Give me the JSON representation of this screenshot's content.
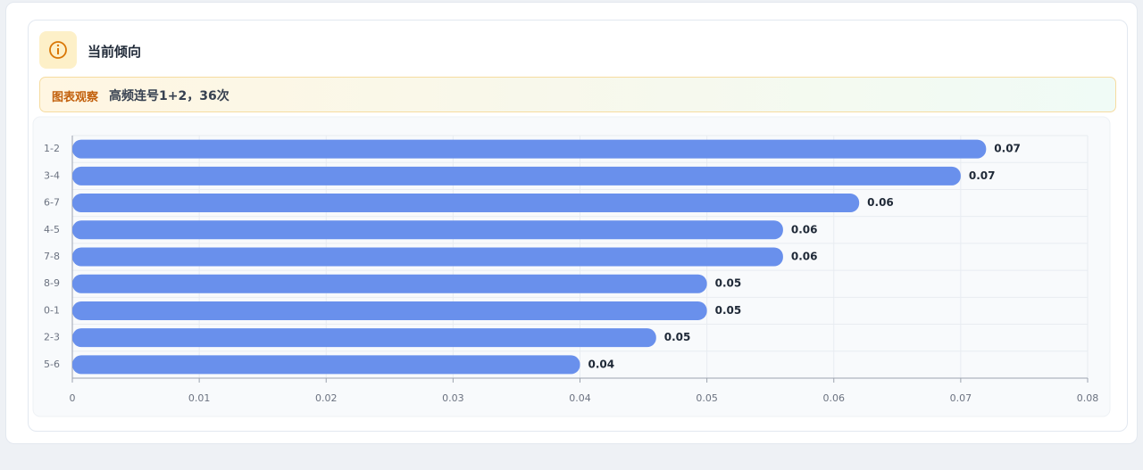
{
  "header": {
    "title": "当前倾向"
  },
  "notice": {
    "label": "图表观察",
    "text": "高频连号1+2，36次"
  },
  "chart_data": {
    "type": "bar",
    "orientation": "horizontal",
    "categories": [
      "1-2",
      "3-4",
      "6-7",
      "4-5",
      "7-8",
      "8-9",
      "0-1",
      "2-3",
      "5-6"
    ],
    "values": [
      0.072,
      0.07,
      0.062,
      0.056,
      0.056,
      0.05,
      0.05,
      0.046,
      0.04
    ],
    "value_labels": [
      "0.07",
      "0.07",
      "0.06",
      "0.06",
      "0.06",
      "0.05",
      "0.05",
      "0.05",
      "0.04"
    ],
    "color": "#6990ec",
    "xlim": [
      0,
      0.08
    ],
    "xticks": [
      0,
      0.01,
      0.02,
      0.03,
      0.04,
      0.05,
      0.06,
      0.07,
      0.08
    ],
    "grid": true
  }
}
